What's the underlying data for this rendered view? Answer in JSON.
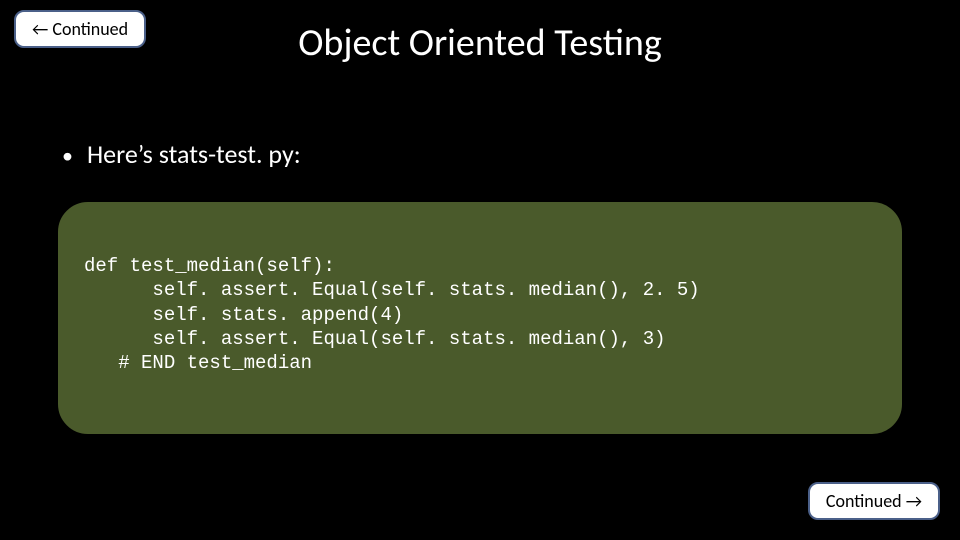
{
  "nav": {
    "back_label": "← Continued",
    "forward_label": "Continued →"
  },
  "slide": {
    "title": "Object Oriented Testing",
    "bullet_text": "Here’s stats-test. py:",
    "code": {
      "line1": "def test_median(self):",
      "line2": "      self. assert. Equal(self. stats. median(), 2. 5)",
      "line3": "      self. stats. append(4)",
      "line4": "      self. assert. Equal(self. stats. median(), 3)",
      "line5": "   # END test_median"
    }
  },
  "style": {
    "background_color": "#000000",
    "title_color": "#ffffff",
    "title_fontsize": 38,
    "bullet_color": "#ffffff",
    "bullet_fontsize": 26,
    "code_block_bg": "#4a5a2b",
    "code_block_border": "#000000",
    "code_block_radius": 32,
    "code_color": "#ffffff",
    "code_fontsize": 19,
    "nav_button_bg": "#ffffff",
    "nav_button_border": "#4b6089",
    "nav_button_radius": 10,
    "nav_button_fontsize": 18,
    "slide_width": 960,
    "slide_height": 540
  }
}
